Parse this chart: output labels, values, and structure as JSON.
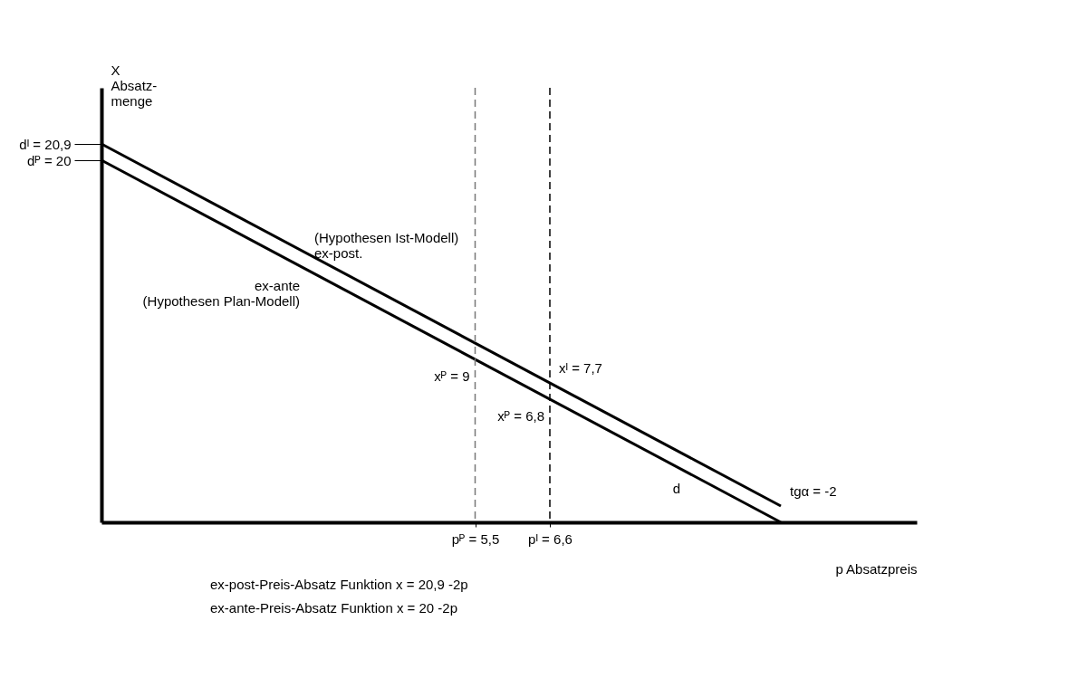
{
  "chart_data": {
    "type": "line",
    "xlabel": "p Absatzpreis",
    "ylabel": "X\nAbsatz-\nmenge",
    "series": [
      {
        "color": "#000000",
        "values": [
          20.9,
          0.9
        ]
      },
      {
        "color": "#000000",
        "values": [
          20,
          0
        ]
      }
    ],
    "x": [
      0,
      10
    ],
    "xlim": [
      0,
      12
    ],
    "ylim": [
      0,
      24
    ],
    "xticks": [
      {
        "value": 5.5,
        "label": "pᴾ = 5,5"
      },
      {
        "value": 6.6,
        "label": "pᴵ = 6,6"
      }
    ],
    "yticks": [
      {
        "value": 20,
        "label": "dᴾ = 20"
      },
      {
        "value": 20.9,
        "label": "dᴵ = 20,9"
      }
    ],
    "ref_lines": [
      {
        "axis": "x",
        "value": 5.5,
        "line_style": "dashed",
        "color": "#777777"
      },
      {
        "axis": "x",
        "value": 6.6,
        "line_style": "dashed",
        "color": "#000000"
      }
    ],
    "annotations": [
      {
        "text": "(Hypothesen Ist-Modell)\nex-post.",
        "x": 3,
        "y": 14.9
      },
      {
        "text": "ex-ante\n(Hypothesen Plan-Modell)",
        "x": 3,
        "y": 14
      },
      {
        "text": "xᴵ = 7,7",
        "x": 6.6,
        "y": 7.7
      },
      {
        "text": "xᴾ = 6,8",
        "x": 6.6,
        "y": 6.8
      },
      {
        "text": "xᴾ = 9",
        "x": 5.5,
        "y": 9
      },
      {
        "text": "tgα = -2",
        "x": 10,
        "y": 0.9
      },
      {
        "text": "d",
        "x": 8.6,
        "y": 2.8
      },
      "ex-post-Preis-Absatz Funktion x = 20,9 -2p",
      "ex-ante-Preis-Absatz Funktion x = 20   -2p"
    ],
    "grid": false,
    "line_style": "solid"
  }
}
